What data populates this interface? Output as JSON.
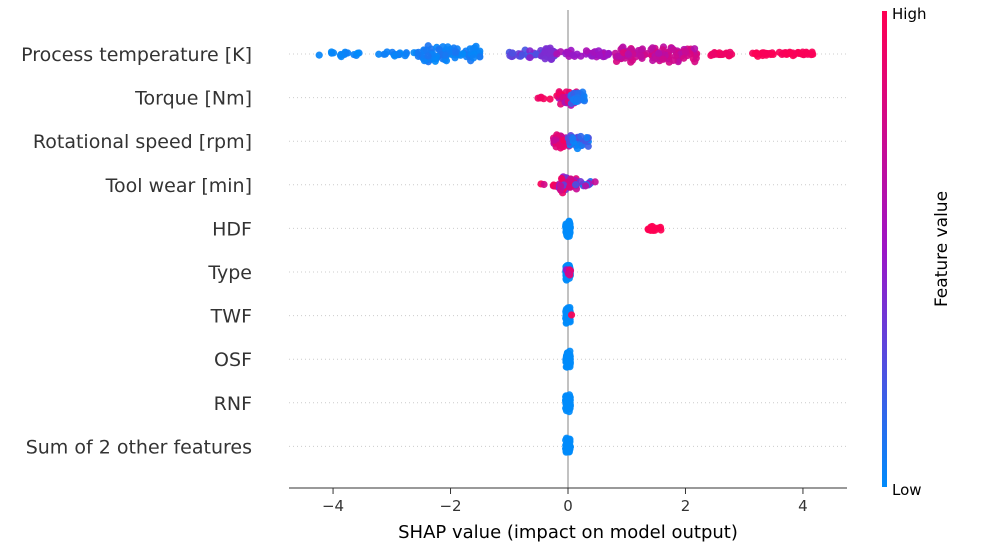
{
  "chart_data": {
    "type": "scatter",
    "subtype": "shap-beeswarm",
    "xlabel": "SHAP value (impact on model output)",
    "xlim": [
      -4.75,
      4.75
    ],
    "xticks": [
      -4,
      -2,
      0,
      2,
      4
    ],
    "xtick_labels": [
      "−4",
      "−2",
      "0",
      "2",
      "4"
    ],
    "grid": "dotted horizontal per feature",
    "colorbar": {
      "title": "Feature value",
      "high_label": "High",
      "low_label": "Low",
      "high_color": "#ff0052",
      "low_color": "#008bfb"
    },
    "features": [
      {
        "name": "Process temperature [K]",
        "groups": [
          {
            "from": -4.3,
            "to": -3.5,
            "n": 16,
            "c": [
              0.0,
              0.05
            ],
            "spread": 0.3
          },
          {
            "from": -3.3,
            "to": -2.5,
            "n": 20,
            "c": [
              0.0,
              0.08
            ],
            "spread": 0.35
          },
          {
            "from": -2.5,
            "to": -1.5,
            "n": 80,
            "c": [
              0.0,
              0.1
            ],
            "spread": 1.0
          },
          {
            "from": -1.0,
            "to": -0.2,
            "n": 40,
            "c": [
              0.2,
              0.45
            ],
            "spread": 0.6
          },
          {
            "from": -0.45,
            "to": -0.25,
            "n": 24,
            "c": [
              0.38,
              0.42
            ],
            "spread": 1.0
          },
          {
            "from": -0.2,
            "to": 0.7,
            "n": 34,
            "c": [
              0.45,
              0.6
            ],
            "spread": 0.5
          },
          {
            "from": 0.8,
            "to": 2.2,
            "n": 120,
            "c": [
              0.6,
              0.82
            ],
            "spread": 1.0
          },
          {
            "from": 2.4,
            "to": 2.8,
            "n": 18,
            "c": [
              0.9,
              0.95
            ],
            "spread": 0.3
          },
          {
            "from": 3.1,
            "to": 4.2,
            "n": 50,
            "c": [
              0.95,
              1.0
            ],
            "spread": 0.3
          }
        ]
      },
      {
        "name": "Torque [Nm]",
        "groups": [
          {
            "from": -0.55,
            "to": -0.3,
            "n": 5,
            "c": [
              0.9,
              1.0
            ],
            "spread": 0.3
          },
          {
            "from": -0.2,
            "to": 0.15,
            "n": 45,
            "c": [
              0.4,
              1.0
            ],
            "spread": 0.9
          },
          {
            "from": 0.05,
            "to": 0.3,
            "n": 25,
            "c": [
              0.0,
              0.2
            ],
            "spread": 0.8
          }
        ]
      },
      {
        "name": "Rotational speed [rpm]",
        "groups": [
          {
            "from": -0.25,
            "to": 0.05,
            "n": 40,
            "c": [
              0.6,
              1.0
            ],
            "spread": 0.9
          },
          {
            "from": 0.0,
            "to": 0.35,
            "n": 35,
            "c": [
              0.0,
              0.3
            ],
            "spread": 0.9
          }
        ]
      },
      {
        "name": "Tool wear [min]",
        "groups": [
          {
            "from": -0.55,
            "to": -0.1,
            "n": 10,
            "c": [
              0.6,
              1.0
            ],
            "spread": 0.3
          },
          {
            "from": -0.15,
            "to": 0.15,
            "n": 50,
            "c": [
              0.3,
              1.0
            ],
            "spread": 1.0
          },
          {
            "from": 0.1,
            "to": 0.5,
            "n": 12,
            "c": [
              0.0,
              0.8
            ],
            "spread": 0.4
          }
        ]
      },
      {
        "name": "HDF",
        "groups": [
          {
            "from": -0.04,
            "to": 0.04,
            "n": 60,
            "c": [
              0.0,
              0.0
            ],
            "spread": 1.0
          },
          {
            "from": 1.3,
            "to": 1.7,
            "n": 12,
            "c": [
              1.0,
              1.0
            ],
            "spread": 0.3
          }
        ]
      },
      {
        "name": "Type",
        "groups": [
          {
            "from": -0.04,
            "to": 0.04,
            "n": 50,
            "c": [
              0.0,
              0.0
            ],
            "spread": 1.0
          },
          {
            "from": -0.06,
            "to": 0.06,
            "n": 10,
            "c": [
              0.5,
              1.0
            ],
            "spread": 0.4
          }
        ]
      },
      {
        "name": "TWF",
        "groups": [
          {
            "from": -0.04,
            "to": 0.04,
            "n": 60,
            "c": [
              0.0,
              0.0
            ],
            "spread": 1.0
          },
          {
            "from": 0.05,
            "to": 0.1,
            "n": 1,
            "c": [
              1.0,
              1.0
            ],
            "spread": 0.1
          }
        ]
      },
      {
        "name": "OSF",
        "groups": [
          {
            "from": -0.04,
            "to": 0.04,
            "n": 60,
            "c": [
              0.0,
              0.0
            ],
            "spread": 1.0
          }
        ]
      },
      {
        "name": "RNF",
        "groups": [
          {
            "from": -0.04,
            "to": 0.04,
            "n": 60,
            "c": [
              0.0,
              0.0
            ],
            "spread": 1.0
          }
        ]
      },
      {
        "name": "Sum of 2 other features",
        "groups": [
          {
            "from": -0.04,
            "to": 0.04,
            "n": 60,
            "c": [
              0.0,
              0.0
            ],
            "spread": 1.0
          }
        ]
      }
    ]
  }
}
